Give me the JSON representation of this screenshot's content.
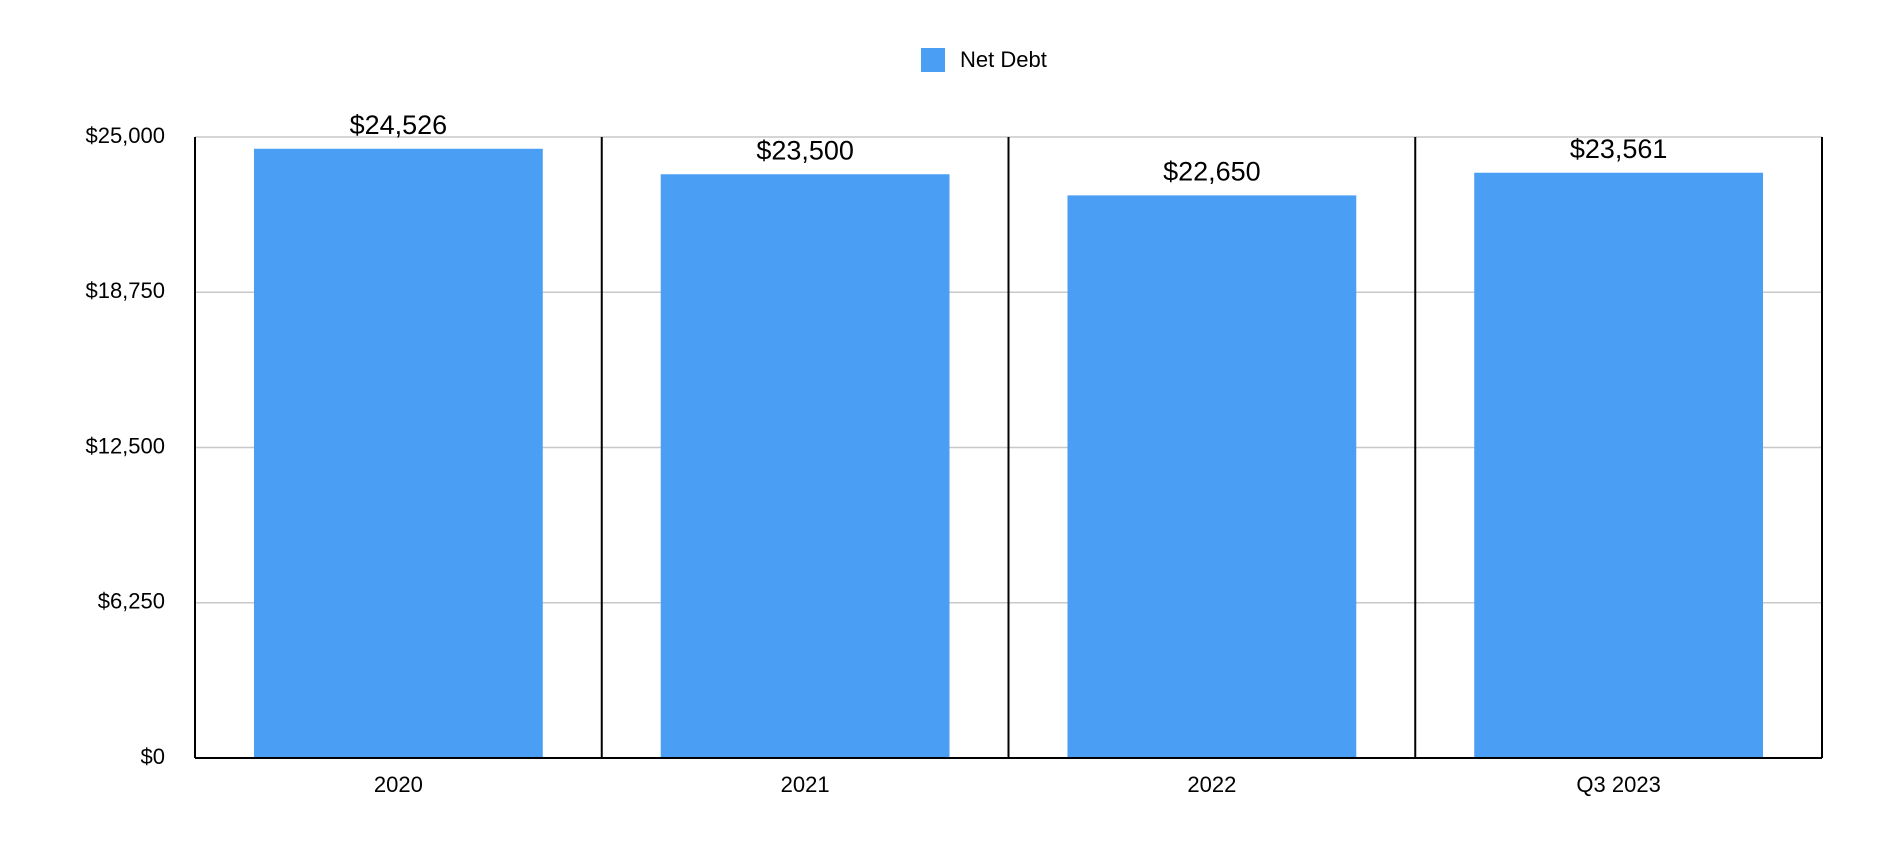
{
  "chart_data": {
    "type": "bar",
    "categories": [
      "2020",
      "2021",
      "2022",
      "Q3 2023"
    ],
    "series": [
      {
        "name": "Net Debt",
        "color": "#4a9ff5",
        "values": [
          24526,
          23500,
          22650,
          23561
        ],
        "value_labels": [
          "$24,526",
          "$23,500",
          "$22,650",
          "$23,561"
        ]
      }
    ],
    "ylim": [
      0,
      25000
    ],
    "yticks": [
      {
        "value": 0,
        "label": "$0"
      },
      {
        "value": 6250,
        "label": "$6,250"
      },
      {
        "value": 12500,
        "label": "$12,500"
      },
      {
        "value": 18750,
        "label": "$18,750"
      },
      {
        "value": 25000,
        "label": "$25,000"
      }
    ],
    "grid": true,
    "legend": "top"
  }
}
